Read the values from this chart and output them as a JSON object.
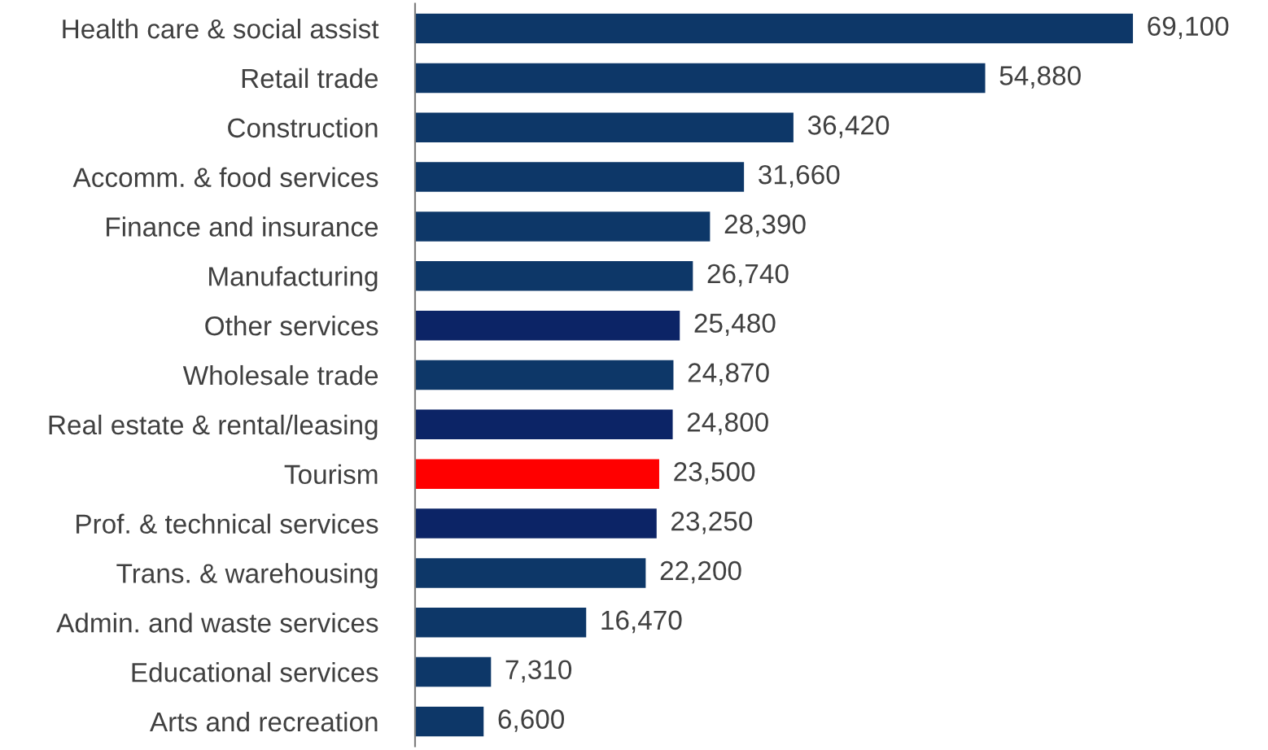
{
  "chart_data": {
    "type": "bar",
    "orientation": "horizontal",
    "value_labels": [
      "69,100",
      "54,880",
      "36,420",
      "31,660",
      "28,390",
      "26,740",
      "25,480",
      "24,870",
      "24,800",
      "23,500",
      "23,250",
      "22,200",
      "16,470",
      "7,310",
      "6,600"
    ],
    "categories": [
      "Health care & social assist",
      "Retail trade",
      "Construction",
      "Accomm. & food services",
      "Finance and insurance",
      "Manufacturing",
      "Other services",
      "Wholesale trade",
      "Real estate & rental/leasing",
      "Tourism",
      "Prof. & technical services",
      "Trans. & warehousing",
      "Admin. and waste services",
      "Educational services",
      "Arts and recreation"
    ],
    "values": [
      69100,
      54880,
      36420,
      31660,
      28390,
      26740,
      25480,
      24870,
      24800,
      23500,
      23250,
      22200,
      16470,
      7310,
      6600
    ],
    "colors": [
      "#0d3768",
      "#0d3768",
      "#0d3768",
      "#0d3768",
      "#0d3768",
      "#0d3768",
      "#0c2466",
      "#0d3768",
      "#0c2466",
      "#ff0000",
      "#0c2466",
      "#0d3768",
      "#0d3768",
      "#0d3768",
      "#0d3768"
    ]
  }
}
